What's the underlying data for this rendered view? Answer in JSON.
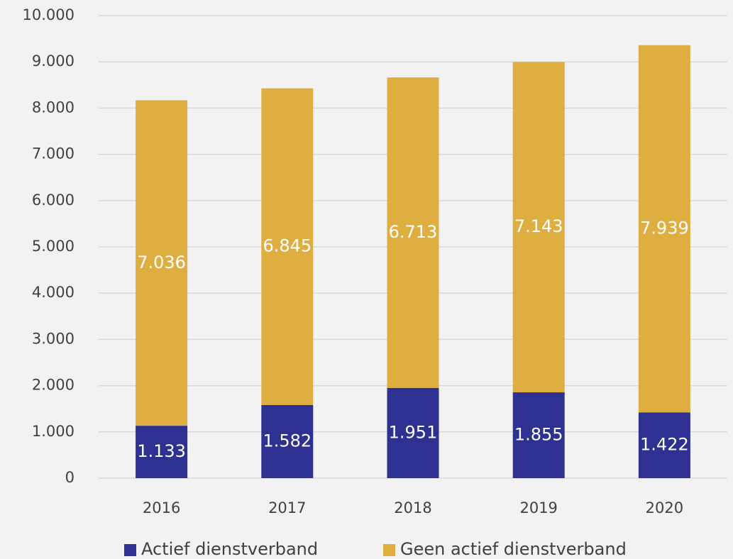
{
  "chart_data": {
    "type": "stacked_bar",
    "categories": [
      "2016",
      "2017",
      "2018",
      "2019",
      "2020"
    ],
    "series": [
      {
        "name": "Actief dienstverband",
        "color": "#2e3192",
        "values": [
          1133,
          1582,
          1951,
          1855,
          1422
        ],
        "value_labels": [
          "1.133",
          "1.582",
          "1.951",
          "1.855",
          "1.422"
        ]
      },
      {
        "name": "Geen actief dienstverband",
        "color": "#dfae40",
        "values": [
          7036,
          6845,
          6713,
          7143,
          7939
        ],
        "value_labels": [
          "7.036",
          "6.845",
          "6.713",
          "7.143",
          "7.939"
        ]
      }
    ],
    "ylim": [
      0,
      10000
    ],
    "yticks": [
      0,
      {
        "value": 1000,
        "label": "1.000"
      },
      {
        "value": 2000,
        "label": "2.000"
      },
      {
        "value": 3000,
        "label": "3.000"
      },
      {
        "value": 4000,
        "label": "4.000"
      },
      {
        "value": 5000,
        "label": "5.000"
      },
      {
        "value": 6000,
        "label": "6.000"
      },
      {
        "value": 7000,
        "label": "7.000"
      },
      {
        "value": 8000,
        "label": "8.000"
      },
      {
        "value": 9000,
        "label": "9.000"
      },
      {
        "value": 10000,
        "label": "10.000"
      }
    ],
    "grid": true,
    "legend": "bottom"
  }
}
